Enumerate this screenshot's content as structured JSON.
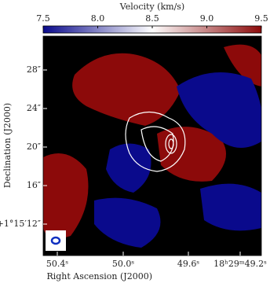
{
  "chart_data": {
    "type": "map",
    "colorbar_label": "Velocity (km/s)",
    "clim": [
      7.5,
      9.5
    ],
    "cticks": [
      7.5,
      {
        "value": 8,
        "label": "8.0"
      },
      8.5,
      {
        "value": 9,
        "label": "9.0"
      },
      9.5
    ],
    "colors": [
      "#0a0a8c",
      "#ffffff",
      "#8c0a0a"
    ],
    "xlabel": "Right Ascension (J2000)",
    "ylabel": "Declination (J2000)",
    "xtick_labels": [
      "50.4ˢ",
      "50.0ˢ",
      "49.6ˢ",
      "18ʰ29ᵐ49.2ˢ"
    ],
    "ytick_labels": [
      "28″",
      "24″",
      "20″",
      "16″",
      "+1°15′12″"
    ]
  }
}
